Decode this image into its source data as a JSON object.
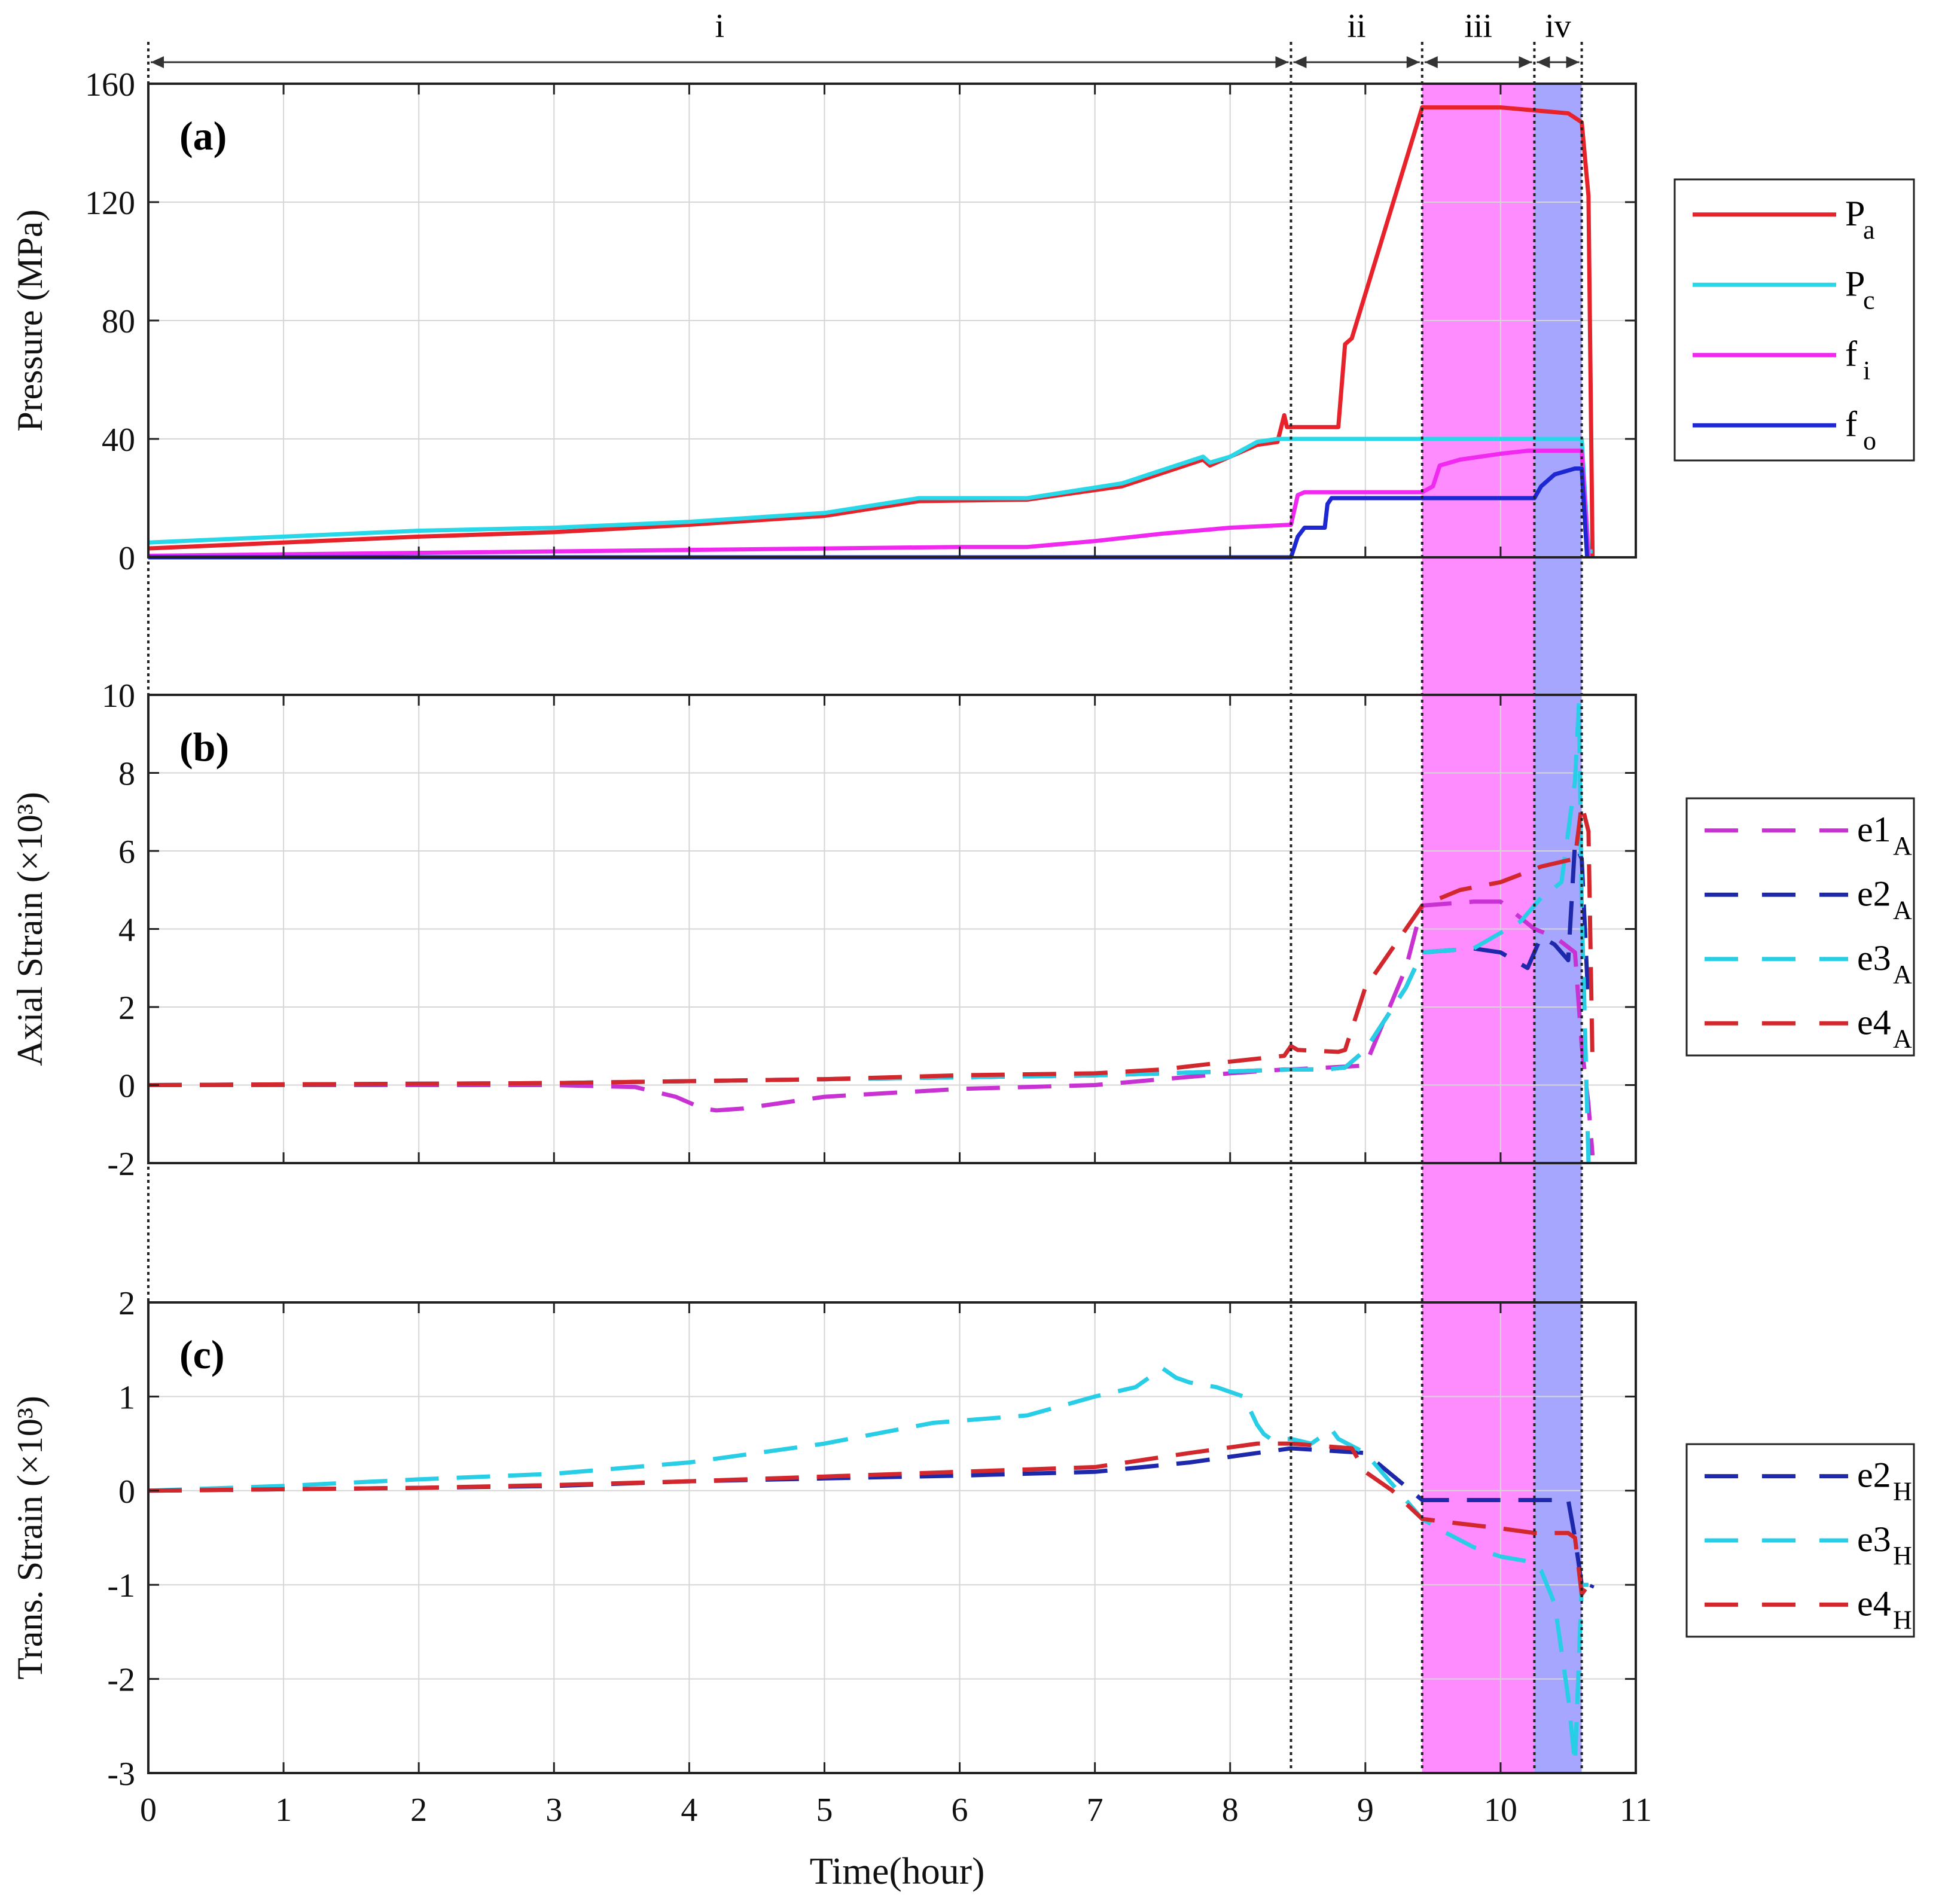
{
  "figure": {
    "xlabel": "Time(hour)",
    "xlim": [
      0,
      11
    ],
    "xticks": [
      "0",
      "1",
      "2",
      "3",
      "4",
      "5",
      "6",
      "7",
      "8",
      "9",
      "10",
      "11"
    ],
    "phase_boundaries": [
      0,
      8.45,
      9.42,
      10.25,
      10.6
    ],
    "phase_labels": [
      "i",
      "ii",
      "iii",
      "iv"
    ],
    "shading": [
      {
        "start": 9.42,
        "end": 10.25,
        "color": "#ff8cff"
      },
      {
        "start": 10.25,
        "end": 10.6,
        "color": "#a6a6ff"
      }
    ]
  },
  "chart_data": [
    {
      "type": "line",
      "panel": "(a)",
      "ylabel": "Pressure (MPa)",
      "ylim": [
        0,
        160
      ],
      "yticks": [
        "0",
        "40",
        "80",
        "120",
        "160"
      ],
      "legend_position": "right",
      "series": [
        {
          "name": "P",
          "sub": "a",
          "color": "#e8222a",
          "dash": "solid",
          "x": [
            0,
            1,
            2,
            3,
            4,
            5,
            5.7,
            6.5,
            7.2,
            7.8,
            7.85,
            8.0,
            8.2,
            8.35,
            8.4,
            8.42,
            8.45,
            8.5,
            8.8,
            8.85,
            8.9,
            9.42,
            10.0,
            10.5,
            10.6,
            10.65,
            10.68
          ],
          "y": [
            3,
            5,
            7,
            8.5,
            11,
            14,
            19,
            19.5,
            24,
            33,
            31,
            34,
            38,
            39,
            48,
            44,
            44,
            44,
            44,
            72,
            74,
            152,
            152,
            150,
            147,
            122,
            0
          ]
        },
        {
          "name": "P",
          "sub": "c",
          "color": "#28d8e8",
          "dash": "solid",
          "x": [
            0,
            1,
            2,
            3,
            4,
            5,
            5.7,
            6.5,
            7.2,
            7.8,
            7.85,
            8.0,
            8.2,
            8.35,
            8.45,
            9.0,
            10.0,
            10.6,
            10.65,
            10.68
          ],
          "y": [
            5,
            7,
            9,
            10,
            12,
            15,
            20,
            20,
            25,
            34,
            32,
            34,
            39,
            40,
            40,
            40,
            40,
            40,
            2,
            2
          ]
        },
        {
          "name": "f",
          "sub": "i",
          "color": "#f028f0",
          "dash": "solid",
          "x": [
            0,
            2,
            4,
            6,
            6.5,
            7,
            7.5,
            8.0,
            8.45,
            8.5,
            8.55,
            9.42,
            9.5,
            9.55,
            9.7,
            10.0,
            10.2,
            10.5,
            10.6,
            10.65
          ],
          "y": [
            0.5,
            1.5,
            2.5,
            3.5,
            3.5,
            5.5,
            8,
            10,
            11,
            21,
            22,
            22,
            24,
            31,
            33,
            35,
            36,
            36,
            36,
            0
          ]
        },
        {
          "name": "f",
          "sub": "o",
          "color": "#1e28d2",
          "dash": "solid",
          "x": [
            0,
            5,
            8.45,
            8.5,
            8.55,
            8.6,
            8.7,
            8.72,
            8.75,
            9.0,
            9.42,
            10.0,
            10.25,
            10.3,
            10.4,
            10.55,
            10.6,
            10.64
          ],
          "y": [
            0,
            0,
            0,
            7,
            10,
            10,
            10,
            18,
            20,
            20,
            20,
            20,
            20,
            24,
            28,
            30,
            30,
            0
          ]
        }
      ]
    },
    {
      "type": "line",
      "panel": "(b)",
      "ylabel": "Axial Strain (×10³)",
      "ylim": [
        -2,
        10
      ],
      "yticks": [
        "-2",
        "0",
        "2",
        "4",
        "6",
        "8",
        "10"
      ],
      "legend_position": "right",
      "series": [
        {
          "name": "e1",
          "sub": "A",
          "color": "#c832d2",
          "dash": "dashed",
          "x": [
            0,
            3,
            3.6,
            3.9,
            4.1,
            4.2,
            4.4,
            4.6,
            5,
            6,
            7,
            8,
            8.4,
            8.45,
            9.0,
            9.3,
            9.42,
            9.8,
            10.0,
            10.25,
            10.4,
            10.55,
            10.6,
            10.65,
            10.68
          ],
          "y": [
            0,
            0,
            -0.05,
            -0.3,
            -0.6,
            -0.65,
            -0.6,
            -0.5,
            -0.3,
            -0.1,
            0,
            0.3,
            0.4,
            0.4,
            0.5,
            3.0,
            4.6,
            4.7,
            4.7,
            4.0,
            3.8,
            3.4,
            1.0,
            -0.5,
            -1.8
          ]
        },
        {
          "name": "e2",
          "sub": "A",
          "color": "#1e28aa",
          "dash": "dashed",
          "x": [
            0,
            3,
            4,
            5,
            6,
            7,
            8,
            8.45,
            8.7,
            8.85,
            9.0,
            9.3,
            9.42,
            9.8,
            10.0,
            10.2,
            10.3,
            10.4,
            10.5,
            10.55,
            10.6,
            10.65
          ],
          "y": [
            0,
            0.05,
            0.1,
            0.15,
            0.2,
            0.25,
            0.35,
            0.4,
            0.4,
            0.45,
            0.9,
            2.5,
            3.4,
            3.5,
            3.4,
            3.0,
            3.8,
            3.6,
            3.2,
            6.2,
            5.8,
            2.0
          ]
        },
        {
          "name": "e3",
          "sub": "A",
          "color": "#28cde6",
          "dash": "dashed",
          "x": [
            0,
            3,
            4,
            5,
            6,
            7,
            8,
            8.45,
            8.7,
            8.85,
            9.0,
            9.3,
            9.42,
            9.8,
            10.0,
            10.15,
            10.3,
            10.45,
            10.55,
            10.58,
            10.6,
            10.62,
            10.65
          ],
          "y": [
            0,
            0.05,
            0.1,
            0.15,
            0.2,
            0.25,
            0.35,
            0.4,
            0.4,
            0.45,
            0.9,
            2.5,
            3.4,
            3.5,
            3.9,
            4.2,
            4.8,
            5.2,
            7.8,
            9.8,
            4.5,
            2.0,
            -2.0
          ]
        },
        {
          "name": "e4",
          "sub": "A",
          "color": "#d2282d",
          "dash": "dashed",
          "x": [
            0,
            3,
            4,
            5,
            6,
            7,
            7.5,
            8,
            8.4,
            8.45,
            8.5,
            8.8,
            8.85,
            9.0,
            9.2,
            9.42,
            9.7,
            10.0,
            10.3,
            10.55,
            10.6,
            10.65,
            10.68
          ],
          "y": [
            0,
            0.05,
            0.1,
            0.15,
            0.25,
            0.3,
            0.4,
            0.6,
            0.75,
            1.0,
            0.9,
            0.85,
            0.9,
            2.5,
            3.5,
            4.6,
            5.0,
            5.2,
            5.6,
            5.8,
            7.2,
            6.5,
            0.5
          ]
        }
      ]
    },
    {
      "type": "line",
      "panel": "(c)",
      "ylabel": "Trans. Strain (×10³)",
      "ylim": [
        -3,
        2
      ],
      "yticks": [
        "-3",
        "-2",
        "-1",
        "0",
        "1",
        "2"
      ],
      "legend_position": "right",
      "series": [
        {
          "name": "e2",
          "sub": "H",
          "color": "#1e28aa",
          "dash": "dashed",
          "x": [
            0,
            2,
            3,
            4,
            5,
            6,
            7,
            7.7,
            8.2,
            8.45,
            9.0,
            9.42,
            10.0,
            10.25,
            10.4,
            10.5,
            10.55,
            10.6,
            10.65,
            10.68
          ],
          "y": [
            0,
            0.03,
            0.05,
            0.1,
            0.13,
            0.16,
            0.2,
            0.3,
            0.4,
            0.45,
            0.4,
            -0.1,
            -0.1,
            -0.1,
            -0.1,
            -0.1,
            -0.5,
            -1.0,
            -1.1,
            -1.0
          ]
        },
        {
          "name": "e3",
          "sub": "H",
          "color": "#28cde6",
          "dash": "dashed",
          "x": [
            0,
            1,
            2,
            3,
            4,
            5,
            5.8,
            6.5,
            7.0,
            7.3,
            7.5,
            7.6,
            7.7,
            7.9,
            8.1,
            8.2,
            8.25,
            8.3,
            8.45,
            8.6,
            8.75,
            8.8,
            9.0,
            9.3,
            9.42,
            9.6,
            9.8,
            10.0,
            10.2,
            10.3,
            10.4,
            10.5,
            10.55,
            10.6,
            10.65
          ],
          "y": [
            0,
            0.05,
            0.12,
            0.18,
            0.3,
            0.5,
            0.72,
            0.8,
            1.0,
            1.1,
            1.3,
            1.2,
            1.15,
            1.1,
            1.0,
            0.7,
            0.6,
            0.55,
            0.55,
            0.5,
            0.65,
            0.55,
            0.4,
            -0.1,
            -0.3,
            -0.45,
            -0.6,
            -0.7,
            -0.75,
            -0.85,
            -1.2,
            -2.2,
            -2.9,
            -1.0,
            -1.0
          ]
        },
        {
          "name": "e4",
          "sub": "H",
          "color": "#d2282d",
          "dash": "dashed",
          "x": [
            0,
            2,
            3,
            4,
            5,
            6,
            7,
            7.7,
            8.2,
            8.45,
            8.9,
            9.0,
            9.2,
            9.42,
            9.7,
            10.0,
            10.25,
            10.4,
            10.5,
            10.55,
            10.6,
            10.65,
            10.68
          ],
          "y": [
            0,
            0.03,
            0.06,
            0.1,
            0.15,
            0.2,
            0.25,
            0.4,
            0.5,
            0.5,
            0.45,
            0.2,
            0.0,
            -0.3,
            -0.35,
            -0.4,
            -0.45,
            -0.45,
            -0.45,
            -0.5,
            -1.1,
            -1.0,
            -1.1
          ]
        }
      ]
    }
  ]
}
